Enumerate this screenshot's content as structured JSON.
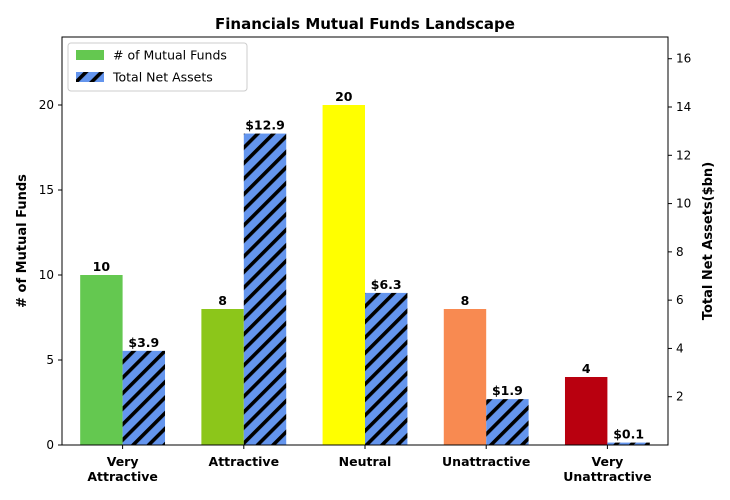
{
  "chart_data": {
    "type": "bar",
    "title": "Financials Mutual Funds Landscape",
    "categories": [
      [
        "Very",
        "Attractive"
      ],
      [
        "Attractive"
      ],
      [
        "Neutral"
      ],
      [
        "Unattractive"
      ],
      [
        "Very",
        "Unattractive"
      ]
    ],
    "series": [
      {
        "name": "# of Mutual Funds",
        "axis": "left",
        "values": [
          10,
          8,
          20,
          8,
          4
        ],
        "labels": [
          "10",
          "8",
          "20",
          "8",
          "4"
        ],
        "colors": [
          "#64c850",
          "#8cc61a",
          "#ffff00",
          "#f88a51",
          "#b9000f"
        ],
        "legend_color": "#64c850",
        "hatch": false
      },
      {
        "name": "Total Net Assets",
        "axis": "right",
        "values": [
          3.9,
          12.9,
          6.3,
          1.9,
          0.1
        ],
        "labels": [
          "$3.9",
          "$12.9",
          "$6.3",
          "$1.9",
          "$0.1"
        ],
        "color": "#6495ed",
        "hatch": true
      }
    ],
    "ylabel": "# of Mutual Funds",
    "ylim": [
      0,
      24
    ],
    "yticks": [
      "0",
      "5",
      "10",
      "15",
      "20"
    ],
    "y2label": "Total Net Assets($bn)",
    "y2lim": [
      0,
      16.9
    ],
    "y2ticks": [
      "2",
      "4",
      "6",
      "8",
      "10",
      "12",
      "14",
      "16"
    ],
    "grid": false,
    "legend_position": "top-left"
  }
}
